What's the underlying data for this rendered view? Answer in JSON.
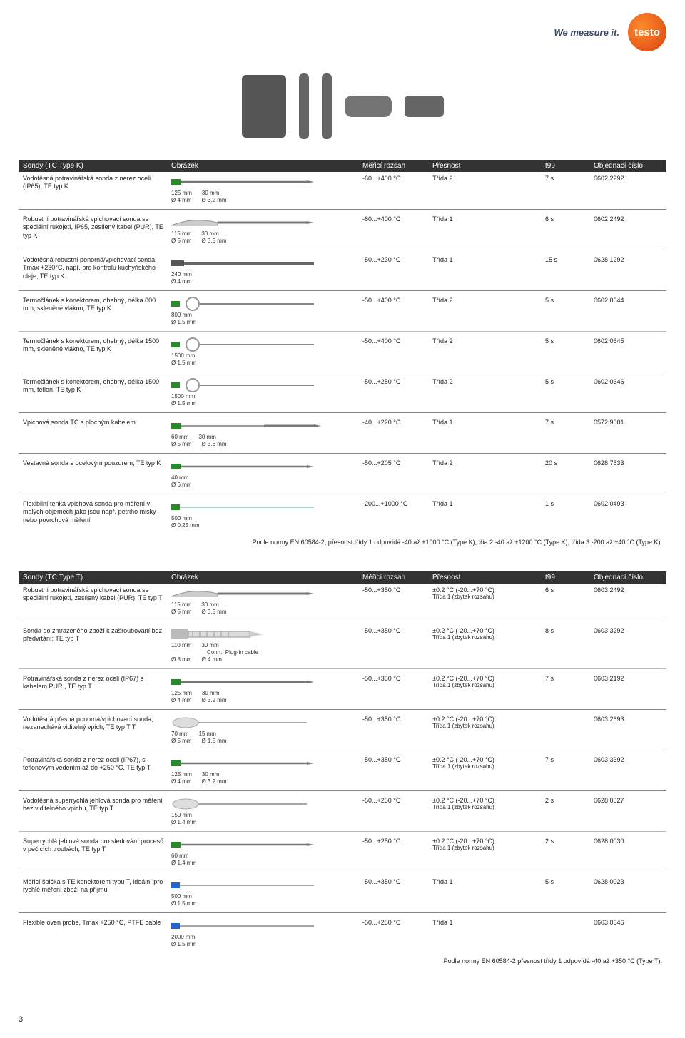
{
  "header": {
    "slogan": "We measure it.",
    "logo": "testo"
  },
  "table1": {
    "columns": {
      "c1": "Sondy (TC Type K)",
      "c2": "Obrázek",
      "c3": "Měřicí rozsah",
      "c4": "Přesnost",
      "c5": "t99",
      "c6": "Objednací číslo"
    },
    "rows": [
      {
        "desc": "Vodotěsná potravinářská sonda z nerez oceli (IP65), TE typ K",
        "dims": {
          "l1": "125 mm",
          "d1": "Ø 4 mm",
          "l2": "30 mm",
          "d2": "Ø 3.2 mm"
        },
        "range": "-60...+400 °C",
        "prec": "Třída 2",
        "t99": "7 s",
        "code": "0602 2292"
      },
      {
        "desc": "Robustní potravinářská vpichovací sonda se speciální rukojetí, IP65, zesílený kabel (PUR), TE typ K",
        "dims": {
          "l1": "115 mm",
          "d1": "Ø 5 mm",
          "l2": "30 mm",
          "d2": "Ø 3.5 mm"
        },
        "range": "-60...+400 °C",
        "prec": "Třída 1",
        "t99": "6 s",
        "code": "0602 2492"
      },
      {
        "desc": "Vodotěsná robustní ponorná/vpichovací sonda, Tmax +230°C, např. pro kontrolu kuchyňského oleje, TE typ K",
        "dims": {
          "l1": "240 mm",
          "d1": "Ø 4 mm"
        },
        "range": "-50...+230 °C",
        "prec": "Třída 1",
        "t99": "15 s",
        "code": "0628 1292"
      },
      {
        "desc": "Termočlánek s konektorem, ohebný, délka 800 mm, skleněné vlákno, TE typ K",
        "dims": {
          "l1": "800 mm",
          "d1": "Ø 1.5 mm"
        },
        "range": "-50...+400 °C",
        "prec": "Třída 2",
        "t99": "5 s",
        "code": "0602 0644"
      },
      {
        "desc": "Termočlánek s konektorem, ohebný, délka 1500 mm, skleněné vlákno, TE typ K",
        "dims": {
          "l1": "1500 mm",
          "d1": "Ø 1.5 mm"
        },
        "range": "-50...+400 °C",
        "prec": "Třída 2",
        "t99": "5 s",
        "code": "0602 0645"
      },
      {
        "desc": "Termočlánek s konektorem, ohebný, délka 1500 mm, teflon, TE typ K",
        "dims": {
          "l1": "1500 mm",
          "d1": "Ø 1.5 mm"
        },
        "range": "-50...+250 °C",
        "prec": "Třída 2",
        "t99": "5 s",
        "code": "0602 0646"
      },
      {
        "desc": "Vpichová sonda TC s plochým kabelem",
        "dims": {
          "l1": "60 mm",
          "l2": "30 mm",
          "d1": "Ø 5 mm",
          "d2": "Ø 3.6 mm"
        },
        "range": "-40...+220 °C",
        "prec": "Třída 1",
        "t99": "7 s",
        "code": "0572 9001"
      },
      {
        "desc": "Vestavná sonda s ocelovým pouzdrem, TE typ K",
        "dims": {
          "l1": "40 mm",
          "d1": "Ø 6 mm"
        },
        "range": "-50...+205 °C",
        "prec": "Třída 2",
        "t99": "20 s",
        "code": "0628 7533"
      },
      {
        "desc": "Flexibilní tenká vpichová sonda pro měření v malých objemech jako jsou např. petriho misky nebo povrchová měření",
        "dims": {
          "l1": "500 mm",
          "d1": "Ø 0.25 mm"
        },
        "range": "-200...+1000 °C",
        "prec": "Třída 1",
        "t99": "1 s",
        "code": "0602 0493"
      }
    ],
    "note": "Podle normy  EN 60584-2, přesnost třídy 1 odpovídá -40 až +1000 °C (Type K), třía 2 -40 až +1200 °C (Type K), třída 3 -200 až +40 °C (Type K)."
  },
  "table2": {
    "columns": {
      "c1": "Sondy (TC Type T)",
      "c2": "Obrázek",
      "c3": "Měřicí rozsah",
      "c4": "Přesnost",
      "c5": "t99",
      "c6": "Objednací číslo"
    },
    "rows": [
      {
        "desc": "Robustní potravinářská vpichovací sonda se speciální rukojetí, zesílený kabel (PUR), TE typ T",
        "dims": {
          "l1": "115 mm",
          "d1": "Ø 5 mm",
          "l2": "30 mm",
          "d2": "Ø 3.5 mm"
        },
        "range": "-50...+350 °C",
        "prec": "±0.2 °C (-20...+70 °C)",
        "prec2": "Třída 1 (zbytek rozsahu)",
        "t99": "6 s",
        "code": "0603 2492"
      },
      {
        "desc": "Sonda do zmrazeného zboží k zašroubování bez předvrtání; TE typ T",
        "dims": {
          "l1": "110 mm",
          "d1": "Ø 8 mm",
          "l2": "30 mm",
          "d2": "Ø 4 mm"
        },
        "conn": "Conn.: Plug-in cable",
        "range": "-50...+350 °C",
        "prec": "±0.2 °C (-20...+70 °C)",
        "prec2": "Třída 1 (zbytek rozsahu)",
        "t99": "8 s",
        "code": "0603 3292"
      },
      {
        "desc": "Potravinářská sonda z nerez oceli (IP67) s kabelem PUR , TE typ T",
        "dims": {
          "l1": "125 mm",
          "d1": "Ø 4 mm",
          "l2": "30 mm",
          "d2": "Ø 3.2 mm"
        },
        "range": "-50...+350 °C",
        "prec": "±0.2 °C (-20...+70 °C)",
        "prec2": "Třída 1 (zbytek rozsahu)",
        "t99": "7 s",
        "code": "0603 2192"
      },
      {
        "desc": "Vodotěsná přesná ponorná/vpichovací sonda, nezanechává viditelný vpich, TE typ T T",
        "dims": {
          "l1": "70 mm",
          "d1": "Ø 5 mm",
          "l2": "15 mm",
          "d2": "Ø 1.5 mm"
        },
        "range": "-50...+350 °C",
        "prec": "±0.2 °C (-20...+70 °C)",
        "prec2": "Třída 1 (zbytek rozsahu)",
        "t99": "",
        "code": "0603 2693"
      },
      {
        "desc": "Potravinářská sonda z nerez oceli (IP67), s teflonovým vedením až do +250 °C, TE typ T",
        "dims": {
          "l1": "125 mm",
          "d1": "Ø 4 mm",
          "l2": "30 mm",
          "d2": "Ø 3.2 mm"
        },
        "range": "-50...+350 °C",
        "prec": "±0.2 °C (-20...+70 °C)",
        "prec2": "Třída 1 (zbytek rozsahu)",
        "t99": "7 s",
        "code": "0603 3392"
      },
      {
        "desc": "Vodotěsná superrychlá jehlová sonda pro měření bez viditelného vpichu, TE typ T",
        "dims": {
          "l1": "150 mm",
          "d1": "Ø 1.4 mm"
        },
        "range": "-50...+250 °C",
        "prec": "±0.2 °C (-20...+70 °C)",
        "prec2": "Třída 1 (zbytek rozsahu)",
        "t99": "2 s",
        "code": "0628 0027"
      },
      {
        "desc": "Superrychlá jehlová sonda pro sledování procesů v pečicích troubách, TE typ T",
        "dims": {
          "l1": "60 mm",
          "d1": "Ø 1.4 mm"
        },
        "range": "-50...+250 °C",
        "prec": "±0.2 °C (-20...+70 °C)",
        "prec2": "Třída 1 (zbytek rozsahu)",
        "t99": "2 s",
        "code": "0628 0030"
      },
      {
        "desc": "Měřicí špička s TE konektorem typu T, ideální pro rychlé měření zboží na příjmu",
        "dims": {
          "l1": "500 mm",
          "d1": "Ø 1.5 mm"
        },
        "range": "-50...+350 °C",
        "prec": "Třída 1",
        "t99": "5 s",
        "code": "0628 0023"
      },
      {
        "desc": "Flexible oven probe, Tmax +250 °C, PTFE cable",
        "dims": {
          "l1": "2000 mm",
          "d1": "Ø 1.5 mm"
        },
        "range": "-50...+250 °C",
        "prec": "Třída 1",
        "t99": "",
        "code": "0603 0646"
      }
    ],
    "note": "Podle normy EN 60584-2 přesnost třídy 1 odpovídá -40 až +350 °C (Type T)."
  },
  "pagenum": "3"
}
